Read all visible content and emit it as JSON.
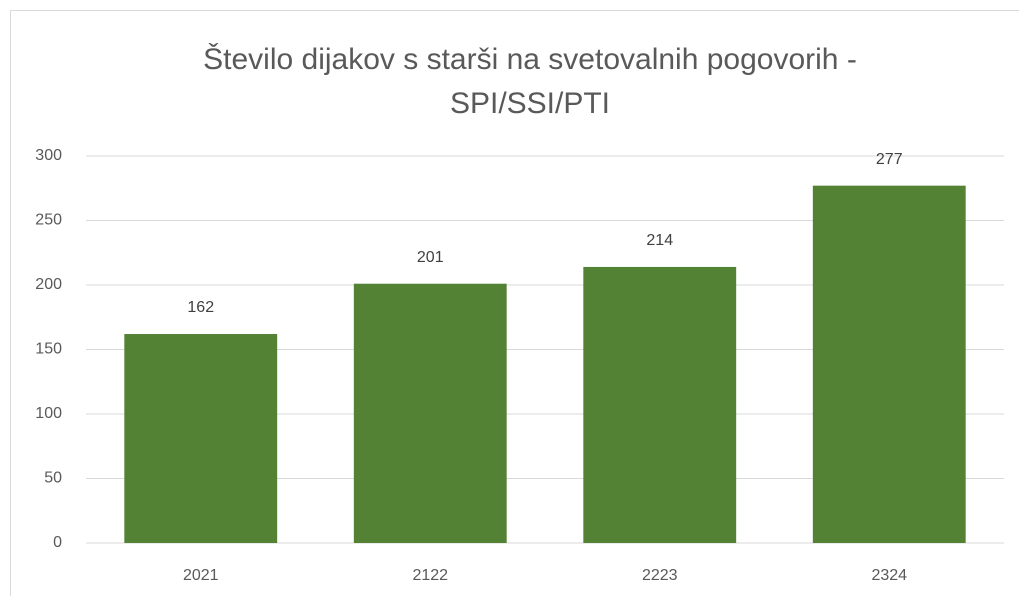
{
  "chart_data": {
    "type": "bar",
    "title": "Število dijakov s starši na svetovalnih pogovorih - SPI/SSI/PTI",
    "categories": [
      "2021",
      "2122",
      "2223",
      "2324"
    ],
    "values": [
      162,
      201,
      214,
      277
    ],
    "color": "#548235",
    "ylim": [
      0,
      300
    ],
    "yticks": [
      0,
      50,
      100,
      150,
      200,
      250,
      300
    ],
    "grid": true
  }
}
